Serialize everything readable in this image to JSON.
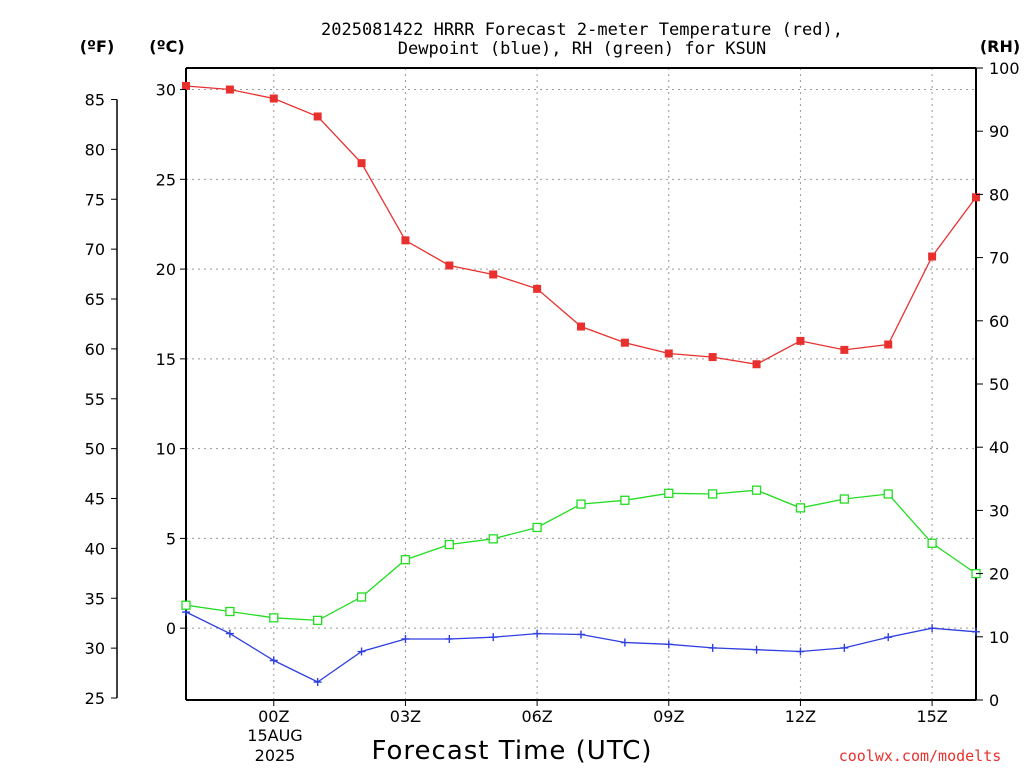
{
  "chart_data": {
    "type": "line",
    "title_line1": "2025081422 HRRR Forecast 2-meter Temperature (red),",
    "title_line2": "Dewpoint (blue), RH (green) for KSUN",
    "xlabel": "Forecast Time (UTC)",
    "units": {
      "fahrenheit": "(ºF)",
      "celsius": "(ºC)",
      "rh": "(RH)"
    },
    "date_label": [
      "15AUG",
      "2025"
    ],
    "credit": "coolwx.com/modelts",
    "x_hours": [
      -2,
      -1,
      0,
      1,
      2,
      3,
      4,
      5,
      6,
      7,
      8,
      9,
      10,
      11,
      12,
      13,
      14,
      15,
      16
    ],
    "x_range": [
      -2,
      16
    ],
    "x_ticks": [
      {
        "hour": 0,
        "label": "00Z"
      },
      {
        "hour": 3,
        "label": "03Z"
      },
      {
        "hour": 6,
        "label": "06Z"
      },
      {
        "hour": 9,
        "label": "09Z"
      },
      {
        "hour": 12,
        "label": "12Z"
      },
      {
        "hour": 15,
        "label": "15Z"
      }
    ],
    "celsius_range": [
      -4,
      31.2
    ],
    "celsius_ticks": [
      "0",
      "5",
      "10",
      "15",
      "20",
      "25",
      "30"
    ],
    "fahrenheit_ticks": [
      "25",
      "30",
      "35",
      "40",
      "45",
      "50",
      "55",
      "60",
      "65",
      "70",
      "75",
      "80",
      "85"
    ],
    "rh_range": [
      0,
      100
    ],
    "rh_ticks": [
      "0",
      "10",
      "20",
      "30",
      "40",
      "50",
      "60",
      "70",
      "80",
      "90",
      "100"
    ],
    "grid": true,
    "series": [
      {
        "key": "temperature",
        "axis": "celsius",
        "color": "#e8312e",
        "marker": "filled-square",
        "values": [
          30.2,
          30.0,
          29.5,
          28.5,
          25.9,
          21.6,
          20.2,
          19.7,
          18.9,
          16.8,
          15.9,
          15.3,
          15.1,
          14.7,
          16.0,
          15.5,
          15.8,
          20.7,
          24.0
        ]
      },
      {
        "key": "dewpoint",
        "axis": "celsius",
        "color": "#2f3fe0",
        "marker": "plus",
        "values": [
          0.9,
          -0.3,
          -1.8,
          -3.0,
          -1.3,
          -0.6,
          -0.6,
          -0.5,
          -0.3,
          -0.35,
          -0.8,
          -0.9,
          -1.1,
          -1.2,
          -1.3,
          -1.1,
          -0.5,
          0.0,
          -0.2
        ]
      },
      {
        "key": "rh",
        "axis": "rh",
        "color": "#22dd22",
        "marker": "open-square",
        "values": [
          15.0,
          14.0,
          13.0,
          12.6,
          16.3,
          22.2,
          24.6,
          25.5,
          27.3,
          31.0,
          31.6,
          32.7,
          32.6,
          33.2,
          30.4,
          31.8,
          32.6,
          24.8,
          20.0
        ]
      }
    ]
  }
}
